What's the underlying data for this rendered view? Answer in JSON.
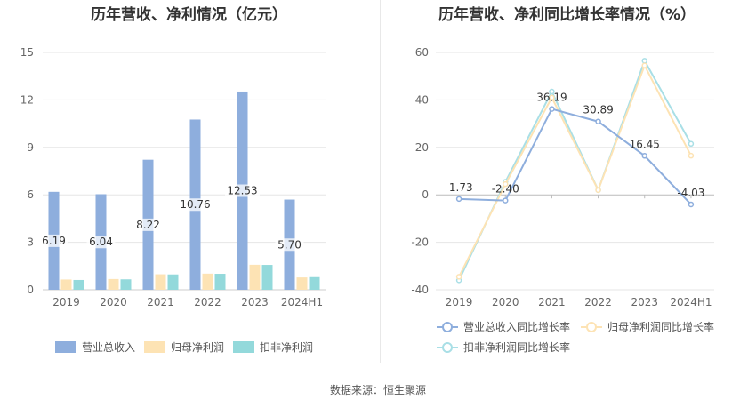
{
  "source": "数据来源：恒生聚源",
  "chart_data": [
    {
      "type": "bar",
      "title": "历年营收、净利情况（亿元）",
      "categories": [
        "2019",
        "2020",
        "2021",
        "2022",
        "2023",
        "2024H1"
      ],
      "ylim": [
        0,
        15
      ],
      "yticks": [
        0,
        3,
        6,
        9,
        12,
        15
      ],
      "series": [
        {
          "name": "营业总收入",
          "color": "#8eaedd",
          "values": [
            6.19,
            6.04,
            8.22,
            10.76,
            12.53,
            5.7
          ],
          "labels": [
            "6.19",
            "6.04",
            "8.22",
            "10.76",
            "12.53",
            "5.70"
          ]
        },
        {
          "name": "归母净利润",
          "color": "#fde3b4",
          "values": [
            0.65,
            0.68,
            0.98,
            1.02,
            1.58,
            0.78
          ]
        },
        {
          "name": "扣非净利润",
          "color": "#93d9db",
          "values": [
            0.62,
            0.66,
            0.97,
            1.01,
            1.57,
            0.8
          ]
        }
      ]
    },
    {
      "type": "line",
      "title": "历年营收、净利同比增长率情况（%）",
      "categories": [
        "2019",
        "2020",
        "2021",
        "2022",
        "2023",
        "2024H1"
      ],
      "ylim": [
        -40,
        60
      ],
      "yticks": [
        -40,
        -20,
        0,
        20,
        40,
        60
      ],
      "series": [
        {
          "name": "营业总收入同比增长率",
          "color": "#8eaedd",
          "values": [
            -1.73,
            -2.4,
            36.19,
            30.89,
            16.45,
            -4.03
          ],
          "labels": [
            "-1.73",
            "-2.40",
            "36.19",
            "30.89",
            "16.45",
            "-4.03"
          ]
        },
        {
          "name": "归母净利润同比增长率",
          "color": "#fde3b4",
          "values": [
            -34.5,
            4.5,
            41.0,
            2.0,
            54.5,
            16.5
          ]
        },
        {
          "name": "扣非净利润同比增长率",
          "color": "#a9dfe6",
          "values": [
            -36.0,
            5.5,
            43.5,
            2.0,
            56.5,
            21.5
          ]
        }
      ]
    }
  ]
}
